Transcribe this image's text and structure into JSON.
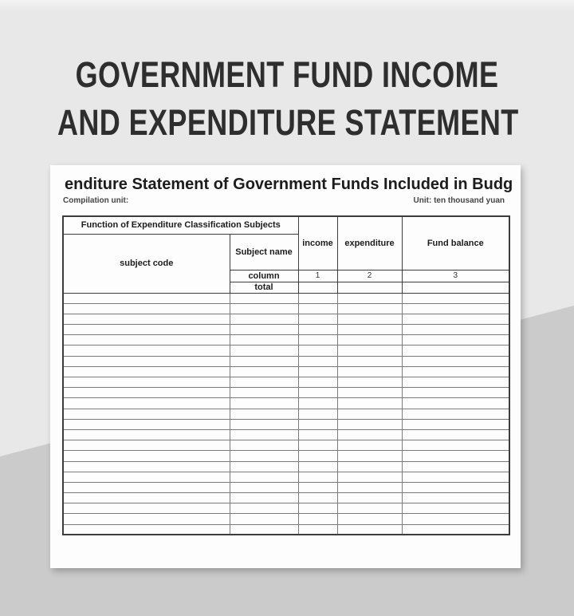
{
  "poster": {
    "title_line1": "GOVERNMENT FUND INCOME",
    "title_line2": "AND EXPENDITURE STATEMENT"
  },
  "sheet": {
    "title": "enditure Statement of Government Funds Included in Budg",
    "compilation_unit_label": "Compilation unit:",
    "unit_label": "Unit: ten thousand yuan"
  },
  "table": {
    "function_header": "Function of Expenditure Classification Subjects",
    "subject_code_header": "subject code",
    "subject_name_header": "Subject name",
    "income_header": "income",
    "expenditure_header": "expenditure",
    "fund_balance_header": "Fund balance",
    "column_row_label": "column",
    "column_numbers": [
      "1",
      "2",
      "3"
    ],
    "total_row_label": "total",
    "empty_row_count": 23
  },
  "colors": {
    "page_bg_top": "#e8e8e8",
    "page_bg_bottom": "#cbcbcb",
    "panel_bg": "#fdfdfd",
    "title_text": "#2e2e2e",
    "table_text": "#1c1c1c",
    "border_dark": "#3d3d3d",
    "border_mid": "#7c7c7c"
  }
}
